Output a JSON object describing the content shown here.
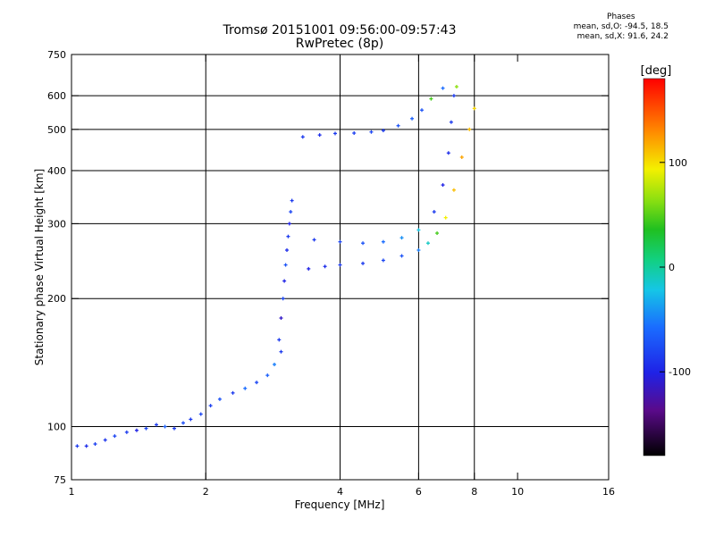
{
  "header": {
    "title_line1": "Tromsø 20151001 09:56:00-09:57:43",
    "title_line2": "RwPretec (8p)"
  },
  "phase_box": {
    "heading": "Phases",
    "line_o": "mean, sd,O: -94.5, 18.5",
    "line_x": "mean, sd,X:  91.6, 24.2"
  },
  "colorbar": {
    "label": "[deg]",
    "ticks": [
      {
        "label": "100",
        "value": 100
      },
      {
        "label": "0",
        "value": 0
      },
      {
        "label": "-100",
        "value": -100
      }
    ],
    "range": [
      -180,
      180
    ]
  },
  "chart_data": {
    "type": "scatter",
    "title": "Tromsø 20151001 09:56:00-09:57:43",
    "subtitle": "RwPretec (8p)",
    "xlabel": "Frequency [MHz]",
    "ylabel": "Stationary phase Virtual Height [km]",
    "xscale": "log",
    "yscale": "log",
    "xlim": [
      1,
      16
    ],
    "ylim": [
      75,
      750
    ],
    "xticks": [
      {
        "label": "1",
        "value": 1
      },
      {
        "label": "2",
        "value": 2
      },
      {
        "label": "4",
        "value": 4
      },
      {
        "label": "6",
        "value": 6
      },
      {
        "label": "8",
        "value": 8
      },
      {
        "label": "10",
        "value": 10
      },
      {
        "label": "16",
        "value": 16
      }
    ],
    "yticks": [
      {
        "label": "75",
        "value": 75
      },
      {
        "label": "100",
        "value": 100
      },
      {
        "label": "200",
        "value": 200
      },
      {
        "label": "300",
        "value": 300
      },
      {
        "label": "400",
        "value": 400
      },
      {
        "label": "500",
        "value": 500
      },
      {
        "label": "600",
        "value": 600
      },
      {
        "label": "750",
        "value": 750
      }
    ],
    "grid_x": [
      2,
      4,
      6,
      8
    ],
    "grid_y": [
      100,
      200,
      300,
      400,
      500,
      600
    ],
    "color_axis": "phase [deg]",
    "series": [
      {
        "values": [
          [
            1.03,
            90,
            -100
          ],
          [
            1.08,
            90,
            -105
          ],
          [
            1.13,
            91,
            -98
          ],
          [
            1.19,
            93,
            -102
          ],
          [
            1.25,
            95,
            -96
          ],
          [
            1.33,
            97,
            -100
          ],
          [
            1.4,
            98,
            -110
          ],
          [
            1.47,
            99,
            -95
          ],
          [
            1.55,
            101,
            -100
          ],
          [
            1.62,
            100,
            -85
          ],
          [
            1.7,
            99,
            -100
          ],
          [
            1.78,
            102,
            -92
          ]
        ]
      },
      {
        "values": [
          [
            1.85,
            104,
            -100
          ],
          [
            1.95,
            107,
            -95
          ],
          [
            2.05,
            112,
            -98
          ],
          [
            2.15,
            116,
            -90
          ],
          [
            2.3,
            120,
            -100
          ],
          [
            2.45,
            123,
            -80
          ],
          [
            2.6,
            127,
            -95
          ],
          [
            2.75,
            132,
            -85
          ],
          [
            2.85,
            140,
            -70
          ],
          [
            2.95,
            150,
            -100
          ]
        ]
      },
      {
        "values": [
          [
            2.92,
            160,
            -100
          ],
          [
            2.95,
            180,
            -120
          ],
          [
            2.98,
            200,
            -95
          ],
          [
            3.0,
            220,
            -110
          ],
          [
            3.02,
            240,
            -90
          ],
          [
            3.04,
            260,
            -105
          ],
          [
            3.06,
            280,
            -100
          ],
          [
            3.08,
            300,
            -110
          ],
          [
            3.1,
            320,
            -95
          ],
          [
            3.12,
            340,
            -100
          ]
        ]
      },
      {
        "values": [
          [
            3.4,
            235,
            -110
          ],
          [
            3.7,
            238,
            -105
          ],
          [
            4.0,
            240,
            -100
          ],
          [
            4.5,
            242,
            -100
          ],
          [
            5.0,
            246,
            -95
          ],
          [
            5.5,
            252,
            -90
          ],
          [
            6.0,
            260,
            -70
          ],
          [
            6.3,
            270,
            -20
          ],
          [
            6.6,
            285,
            40
          ],
          [
            6.9,
            310,
            90
          ],
          [
            7.2,
            360,
            110
          ],
          [
            7.5,
            430,
            120
          ],
          [
            7.8,
            500,
            110
          ],
          [
            8.0,
            560,
            100
          ]
        ]
      },
      {
        "values": [
          [
            3.5,
            275,
            -100
          ],
          [
            4.0,
            272,
            -95
          ],
          [
            4.5,
            270,
            -90
          ],
          [
            5.0,
            272,
            -80
          ],
          [
            5.5,
            278,
            -60
          ],
          [
            6.0,
            290,
            -30
          ],
          [
            6.5,
            320,
            -100
          ],
          [
            6.8,
            370,
            -110
          ],
          [
            7.0,
            440,
            -105
          ],
          [
            7.1,
            520,
            -100
          ],
          [
            7.2,
            600,
            -100
          ]
        ]
      },
      {
        "values": [
          [
            3.3,
            480,
            -100
          ],
          [
            3.6,
            485,
            -105
          ],
          [
            3.9,
            489,
            -100
          ],
          [
            4.3,
            490,
            -98
          ],
          [
            4.7,
            493,
            -95
          ],
          [
            5.0,
            497,
            -100
          ],
          [
            5.4,
            510,
            -90
          ],
          [
            5.8,
            530,
            -85
          ],
          [
            6.1,
            555,
            -90
          ],
          [
            6.4,
            590,
            40
          ],
          [
            6.8,
            625,
            -80
          ],
          [
            7.3,
            630,
            60
          ]
        ]
      }
    ]
  }
}
